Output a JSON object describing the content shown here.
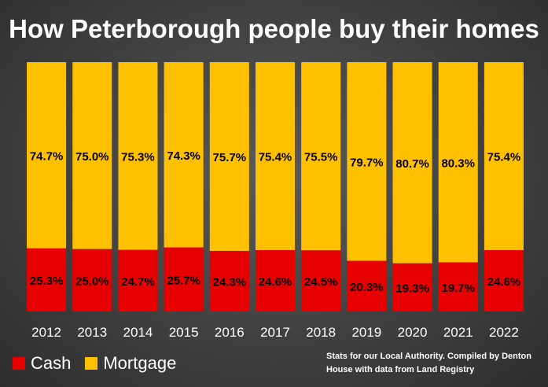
{
  "chart_data": {
    "type": "bar",
    "stacked": true,
    "normalized_percent": true,
    "title": "How Peterborough people buy their homes",
    "categories": [
      "2012",
      "2013",
      "2014",
      "2015",
      "2016",
      "2017",
      "2018",
      "2019",
      "2020",
      "2021",
      "2022"
    ],
    "series": [
      {
        "name": "Cash",
        "color": "#e60000",
        "values": [
          25.3,
          25.0,
          24.7,
          25.7,
          24.3,
          24.6,
          24.5,
          20.3,
          19.3,
          19.7,
          24.6
        ],
        "labels": [
          "25.3%",
          "25.0%",
          "24.7%",
          "25.7%",
          "24.3%",
          "24.6%",
          "24.5%",
          "20.3%",
          "19.3%",
          "19.7%",
          "24.6%"
        ]
      },
      {
        "name": "Mortgage",
        "color": "#ffc000",
        "values": [
          74.7,
          75.0,
          75.3,
          74.3,
          75.7,
          75.4,
          75.5,
          79.7,
          80.7,
          80.3,
          75.4
        ],
        "labels": [
          "74.7%",
          "75.0%",
          "75.3%",
          "74.3%",
          "75.7%",
          "75.4%",
          "75.5%",
          "79.7%",
          "80.7%",
          "80.3%",
          "75.4%"
        ]
      }
    ],
    "ylim": [
      0,
      100
    ],
    "grid": false,
    "legend_position": "bottom-left",
    "source_note": "Stats for our Local Authority. Compiled by Denton House with data from Land Registry"
  }
}
